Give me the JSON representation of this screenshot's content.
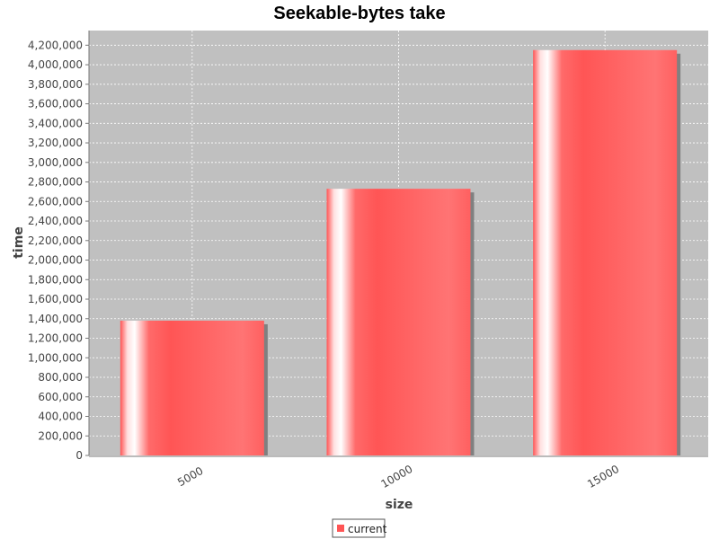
{
  "chart_data": {
    "type": "bar",
    "title": "Seekable-bytes take",
    "xlabel": "size",
    "ylabel": "time",
    "categories": [
      "5000",
      "10000",
      "15000"
    ],
    "series": [
      {
        "name": "current",
        "values": [
          1380000,
          2730000,
          4150000
        ],
        "color": "#ff5555"
      }
    ],
    "ylim": [
      0,
      4350000
    ],
    "y_tick_step": 200000,
    "y_ticks": [
      "0",
      "200,000",
      "400,000",
      "600,000",
      "800,000",
      "1,000,000",
      "1,200,000",
      "1,400,000",
      "1,600,000",
      "1,800,000",
      "2,000,000",
      "2,200,000",
      "2,400,000",
      "2,600,000",
      "2,800,000",
      "3,000,000",
      "3,200,000",
      "3,400,000",
      "3,600,000",
      "3,800,000",
      "4,000,000",
      "4,200,000"
    ],
    "grid": true,
    "legend_placement": "bottom",
    "plot_background": "#c0c0c0",
    "grid_color": "#ffffff"
  }
}
